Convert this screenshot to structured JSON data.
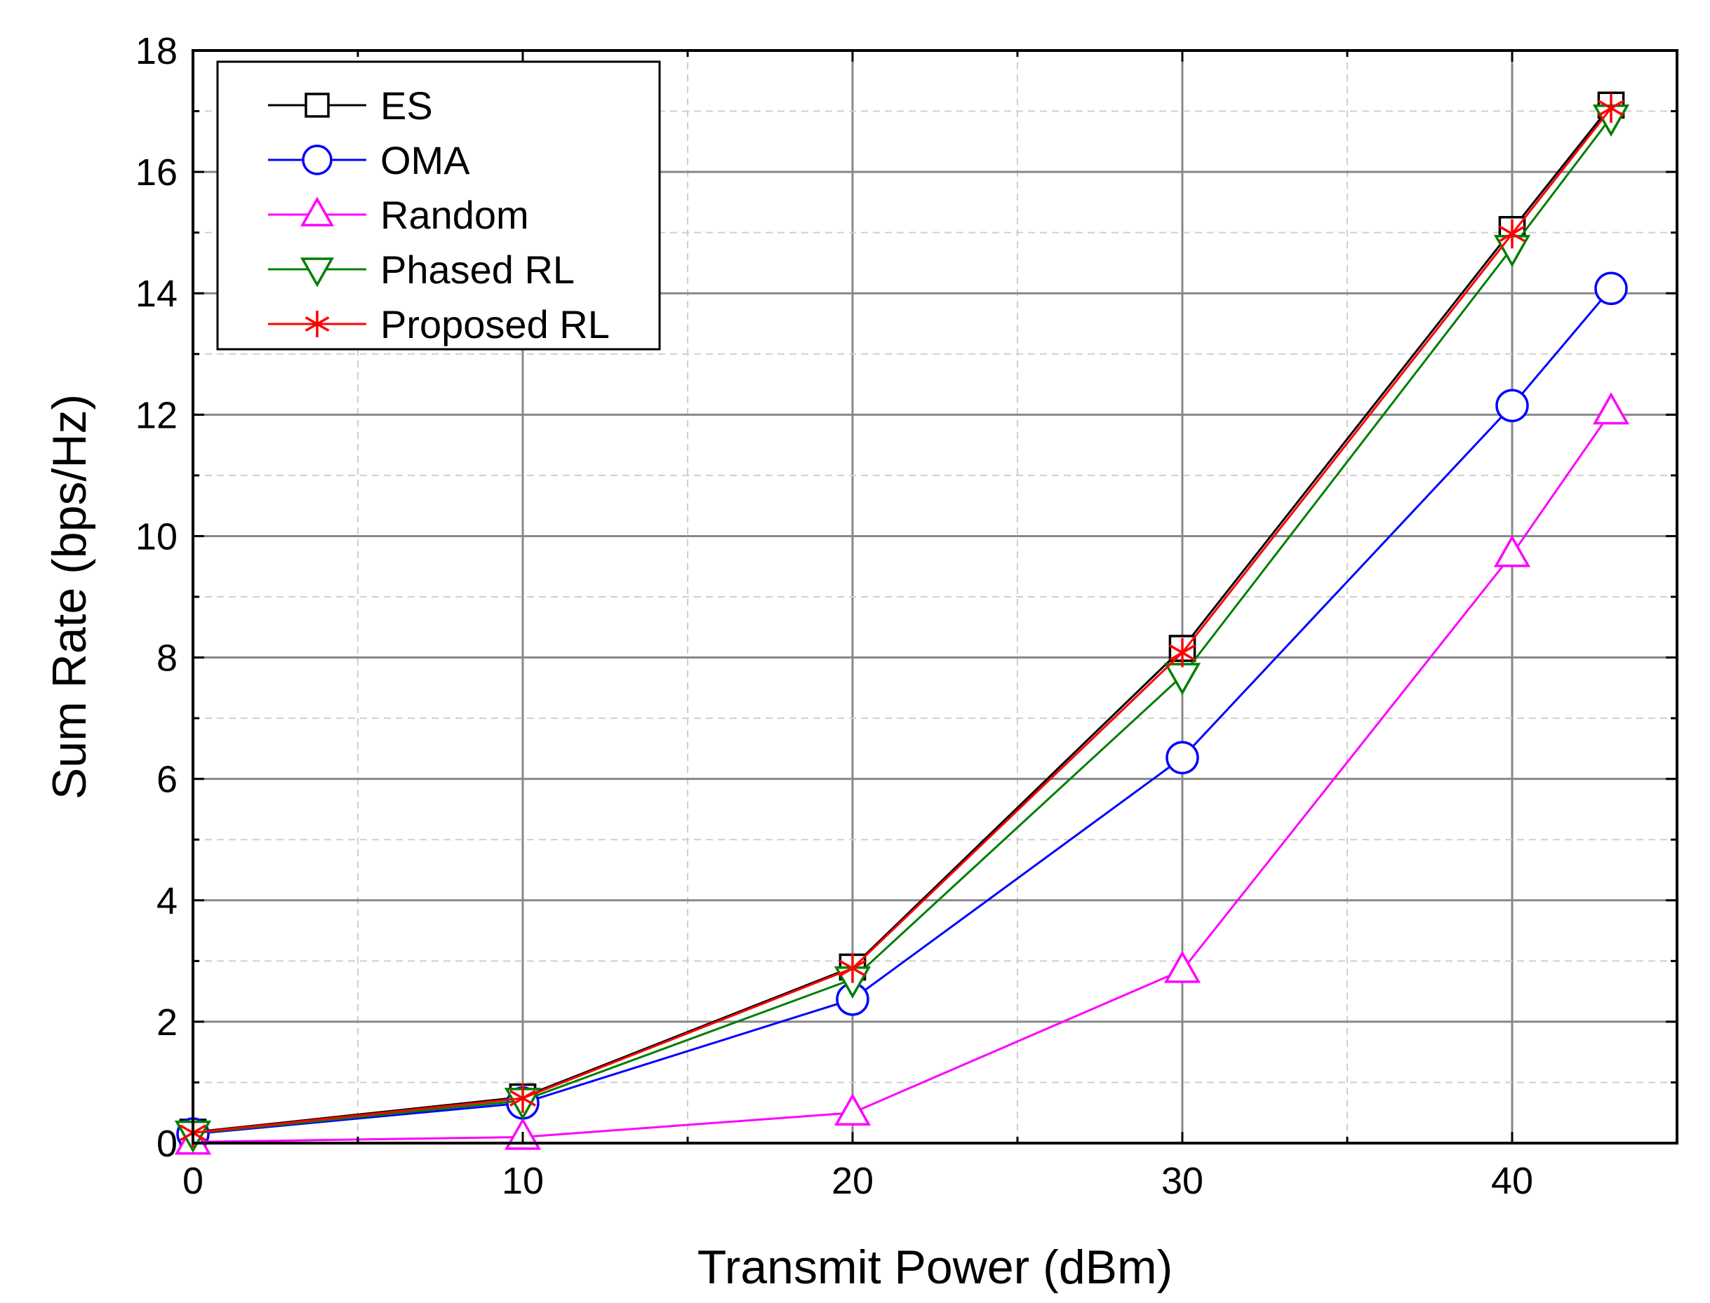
{
  "chart_data": {
    "type": "line",
    "xlabel": "Transmit Power (dBm)",
    "ylabel": "Sum Rate (bps/Hz)",
    "xlim": [
      0,
      45
    ],
    "ylim": [
      0,
      18
    ],
    "xticks": [
      "0",
      "10",
      "20",
      "30",
      "40"
    ],
    "yticks": [
      "0",
      "2",
      "4",
      "6",
      "8",
      "10",
      "12",
      "14",
      "16",
      "18"
    ],
    "grid": true,
    "legend_position": "top-left",
    "x": [
      0,
      10,
      20,
      30,
      40,
      43
    ],
    "series": [
      {
        "name": "ES",
        "color": "#000000",
        "marker": "square",
        "values": [
          0.18,
          0.76,
          2.9,
          8.15,
          15.05,
          17.1
        ]
      },
      {
        "name": "OMA",
        "color": "#0000ff",
        "marker": "circle",
        "values": [
          0.15,
          0.66,
          2.37,
          6.35,
          12.15,
          14.08
        ]
      },
      {
        "name": "Random",
        "color": "#ff00ff",
        "marker": "triangle-up",
        "values": [
          0.02,
          0.1,
          0.5,
          2.85,
          9.7,
          12.05
        ]
      },
      {
        "name": "Phased RL",
        "color": "#007f00",
        "marker": "triangle-down",
        "values": [
          0.16,
          0.7,
          2.7,
          7.7,
          14.75,
          16.9
        ]
      },
      {
        "name": "Proposed RL",
        "color": "#ff0000",
        "marker": "asterisk",
        "values": [
          0.17,
          0.74,
          2.88,
          8.08,
          14.98,
          17.05
        ]
      }
    ]
  }
}
